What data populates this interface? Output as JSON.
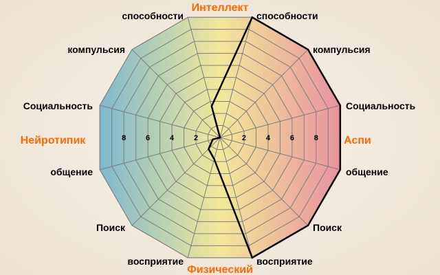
{
  "chart_data": {
    "type": "radar",
    "rmax": 10,
    "ring_step": 1,
    "tick_labels": [
      "2",
      "4",
      "6",
      "8"
    ],
    "ticks": [
      2,
      4,
      6,
      8
    ],
    "category_labels": {
      "top": "Интеллект",
      "bottom": "Физический",
      "left": "Нейротипик",
      "right": "Аспи"
    },
    "axes": [
      {
        "label": "способности",
        "side": "right",
        "value": 10
      },
      {
        "label": "компульсия",
        "side": "right",
        "value": 10
      },
      {
        "label": "Социальность",
        "side": "right",
        "value": 10
      },
      {
        "label": "общение",
        "side": "right",
        "value": 10
      },
      {
        "label": "Поиск",
        "side": "right",
        "value": 10
      },
      {
        "label": "восприятие",
        "side": "right",
        "value": 10
      },
      {
        "label": "восприятие",
        "side": "left",
        "value": 1.8
      },
      {
        "label": "Поиск",
        "side": "left",
        "value": 1.3
      },
      {
        "label": "общение",
        "side": "left",
        "value": 0.6
      },
      {
        "label": "Социальность",
        "side": "left",
        "value": 0
      },
      {
        "label": "компульсия",
        "side": "left",
        "value": 0
      },
      {
        "label": "способности",
        "side": "left",
        "value": 2.6
      }
    ],
    "colors": {
      "left": "#7cb8cf",
      "center": "#f3e899",
      "right": "#e7929e",
      "grid": "#7f7f7f",
      "line": "#000000",
      "category": "#ff6a00"
    }
  }
}
